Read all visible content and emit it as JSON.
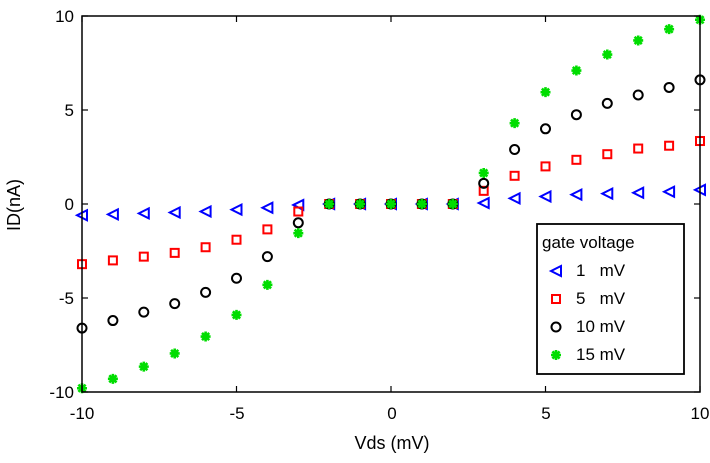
{
  "chart_data": {
    "type": "scatter",
    "xlabel": "Vds (mV)",
    "ylabel": "ID(nA)",
    "xlim": [
      -10,
      10
    ],
    "ylim": [
      -10,
      10
    ],
    "xticks": [
      -10,
      -5,
      0,
      5,
      10
    ],
    "yticks": [
      -10,
      -5,
      0,
      5,
      10
    ],
    "xtick_labels": [
      "-10",
      "-5",
      "0",
      "5",
      "10"
    ],
    "ytick_labels": [
      "-10",
      "-5",
      "0",
      "5",
      "10"
    ],
    "grid": false,
    "legend_title": "gate voltage",
    "legend_position": "bottom-right",
    "x": [
      -10,
      -9,
      -8,
      -7,
      -6,
      -5,
      -4,
      -3,
      -2,
      -1,
      0,
      1,
      2,
      3,
      4,
      5,
      6,
      7,
      8,
      9,
      10
    ],
    "series": [
      {
        "name": "1   mV",
        "marker": "triangle-left",
        "color": "#0000ff",
        "values": [
          -0.6,
          -0.55,
          -0.5,
          -0.45,
          -0.4,
          -0.3,
          -0.2,
          -0.05,
          0,
          0,
          0,
          0,
          0,
          0.05,
          0.3,
          0.4,
          0.5,
          0.55,
          0.6,
          0.65,
          0.75
        ]
      },
      {
        "name": "5   mV",
        "marker": "square",
        "color": "#ff0000",
        "values": [
          -3.2,
          -3.0,
          -2.8,
          -2.6,
          -2.3,
          -1.9,
          -1.35,
          -0.4,
          0,
          0,
          0,
          0,
          0,
          0.7,
          1.5,
          2.0,
          2.35,
          2.65,
          2.95,
          3.1,
          3.35
        ]
      },
      {
        "name": "10 mV",
        "marker": "circle",
        "color": "#000000",
        "values": [
          -6.6,
          -6.2,
          -5.75,
          -5.3,
          -4.7,
          -3.95,
          -2.8,
          -1.0,
          0,
          0,
          0,
          0,
          0,
          1.1,
          2.9,
          4.0,
          4.75,
          5.35,
          5.8,
          6.2,
          6.6
        ]
      },
      {
        "name": "15 mV",
        "marker": "asterisk",
        "color": "#00dd00",
        "values": [
          -9.8,
          -9.3,
          -8.65,
          -7.95,
          -7.05,
          -5.9,
          -4.3,
          -1.55,
          0,
          0,
          0,
          0,
          0,
          1.65,
          4.3,
          5.95,
          7.1,
          7.95,
          8.7,
          9.3,
          9.8
        ]
      }
    ]
  }
}
